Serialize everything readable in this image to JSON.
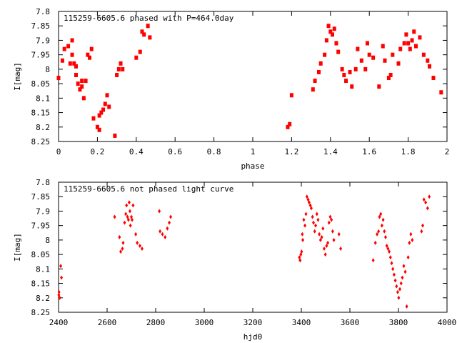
{
  "chart_data": [
    {
      "type": "scatter",
      "title": "115259-6605.6 phased with P=464.0day",
      "xlabel": "phase",
      "ylabel": "I[mag]",
      "xlim": [
        0,
        2
      ],
      "ylim": [
        8.25,
        7.8
      ],
      "y_inverted": true,
      "xticks": [
        "0",
        "0.2",
        "0.4",
        "0.6",
        "0.8",
        "1",
        "1.2",
        "1.4",
        "1.6",
        "1.8",
        "2"
      ],
      "yticks": [
        "7.8",
        "7.85",
        "7.9",
        "7.95",
        "8",
        "8.05",
        "8.1",
        "8.15",
        "8.2",
        "8.25"
      ],
      "grid": false,
      "legend": "none",
      "marker": "filled-square",
      "color": "#ff0000",
      "series": [
        {
          "x": [
            0.0,
            0.02,
            0.03,
            0.05,
            0.06,
            0.07,
            0.07,
            0.08,
            0.09,
            0.09,
            0.1,
            0.11,
            0.12,
            0.12,
            0.13,
            0.14,
            0.15,
            0.16,
            0.17,
            0.18,
            0.2,
            0.21,
            0.21,
            0.22,
            0.23,
            0.24,
            0.25,
            0.26,
            0.29,
            0.3,
            0.31,
            0.32,
            0.33,
            0.4,
            0.42,
            0.43,
            0.44,
            0.46,
            0.47,
            1.18,
            1.19,
            1.2,
            1.31,
            1.32,
            1.34,
            1.35,
            1.37,
            1.38,
            1.39,
            1.4,
            1.41,
            1.42,
            1.43,
            1.44,
            1.46,
            1.47,
            1.48,
            1.5,
            1.51,
            1.53,
            1.54,
            1.56,
            1.58,
            1.59,
            1.6,
            1.62,
            1.65,
            1.67,
            1.68,
            1.7,
            1.71,
            1.72,
            1.75,
            1.76,
            1.78,
            1.79,
            1.8,
            1.81,
            1.82,
            1.83,
            1.84,
            1.86,
            1.88,
            1.9,
            1.91,
            1.93,
            1.97
          ],
          "y": [
            8.03,
            7.97,
            7.93,
            7.92,
            7.98,
            7.95,
            7.9,
            7.98,
            7.99,
            8.02,
            8.05,
            8.07,
            8.04,
            8.06,
            8.1,
            8.04,
            7.95,
            7.96,
            7.93,
            8.17,
            8.2,
            8.21,
            8.16,
            8.15,
            8.14,
            8.12,
            8.09,
            8.13,
            8.23,
            8.02,
            8.0,
            7.98,
            8.0,
            7.96,
            7.94,
            7.87,
            7.88,
            7.85,
            7.89,
            8.2,
            8.19,
            8.09,
            8.07,
            8.04,
            8.01,
            7.98,
            7.95,
            7.9,
            7.85,
            7.87,
            7.88,
            7.86,
            7.91,
            7.94,
            8.0,
            8.02,
            8.04,
            8.01,
            8.06,
            8.0,
            7.93,
            7.97,
            8.0,
            7.91,
            7.95,
            7.96,
            8.06,
            7.92,
            7.97,
            8.03,
            8.02,
            7.95,
            7.98,
            7.93,
            7.91,
            7.88,
            7.91,
            7.93,
            7.9,
            7.87,
            7.92,
            7.89,
            7.95,
            7.97,
            7.99,
            8.03,
            8.08
          ]
        }
      ]
    },
    {
      "type": "scatter",
      "title": "115259-6605.6 not phased light curve",
      "xlabel": "hjd0",
      "ylabel": "I[mag]",
      "xlim": [
        2400,
        4000
      ],
      "ylim": [
        8.25,
        7.8
      ],
      "y_inverted": true,
      "xticks": [
        "2400",
        "2600",
        "2800",
        "3000",
        "3200",
        "3400",
        "3600",
        "3800",
        "4000"
      ],
      "yticks": [
        "7.8",
        "7.85",
        "7.9",
        "7.95",
        "8",
        "8.05",
        "8.1",
        "8.15",
        "8.2",
        "8.25"
      ],
      "grid": false,
      "legend": "none",
      "marker": "diamond",
      "color": "#ff0000",
      "series": [
        {
          "x": [
            2401,
            2402,
            2405,
            2409,
            2412,
            2631,
            2651,
            2656,
            2663,
            2666,
            2672,
            2677,
            2680,
            2684,
            2688,
            2691,
            2694,
            2696,
            2700,
            2703,
            2707,
            2718,
            2724,
            2735,
            2744,
            2815,
            2818,
            2828,
            2839,
            2848,
            2856,
            2862,
            3392,
            3395,
            3398,
            3401,
            3404,
            3406,
            3410,
            3415,
            3419,
            3423,
            3428,
            3432,
            3437,
            3441,
            3446,
            3450,
            3455,
            3459,
            3464,
            3469,
            3474,
            3479,
            3484,
            3489,
            3494,
            3499,
            3504,
            3509,
            3514,
            3519,
            3524,
            3529,
            3534,
            3555,
            3562,
            3696,
            3705,
            3712,
            3718,
            3722,
            3727,
            3732,
            3737,
            3742,
            3747,
            3752,
            3757,
            3762,
            3767,
            3772,
            3777,
            3782,
            3787,
            3792,
            3797,
            3801,
            3806,
            3811,
            3816,
            3822,
            3828,
            3834,
            3840,
            3845,
            3851,
            3857,
            3895,
            3900,
            3905,
            3912,
            3920,
            3927
          ],
          "y": [
            8.19,
            8.18,
            8.2,
            8.09,
            8.13,
            7.92,
            7.99,
            8.04,
            8.03,
            8.01,
            7.94,
            7.91,
            7.88,
            7.92,
            7.93,
            7.87,
            7.9,
            7.95,
            7.92,
            7.93,
            7.88,
            7.98,
            8.01,
            8.02,
            8.03,
            7.9,
            7.97,
            7.98,
            7.99,
            7.96,
            7.94,
            7.92,
            8.06,
            8.07,
            8.05,
            8.04,
            7.98,
            8.0,
            7.93,
            7.95,
            7.91,
            7.85,
            7.86,
            7.87,
            7.88,
            7.89,
            7.92,
            7.94,
            7.97,
            7.95,
            7.91,
            7.93,
            7.98,
            8.0,
            7.99,
            7.96,
            8.03,
            8.05,
            8.02,
            8.01,
            7.94,
            7.92,
            7.93,
            7.97,
            8.0,
            7.98,
            8.03,
            8.07,
            8.01,
            7.98,
            7.97,
            7.92,
            7.91,
            7.95,
            7.93,
            7.97,
            7.99,
            8.02,
            8.03,
            8.04,
            8.06,
            8.08,
            8.1,
            8.12,
            8.14,
            8.16,
            8.18,
            8.2,
            8.17,
            8.15,
            8.13,
            8.09,
            8.11,
            8.23,
            8.06,
            8.01,
            7.98,
            8.0,
            7.97,
            7.95,
            7.86,
            7.87,
            7.89,
            7.85
          ]
        }
      ]
    }
  ]
}
